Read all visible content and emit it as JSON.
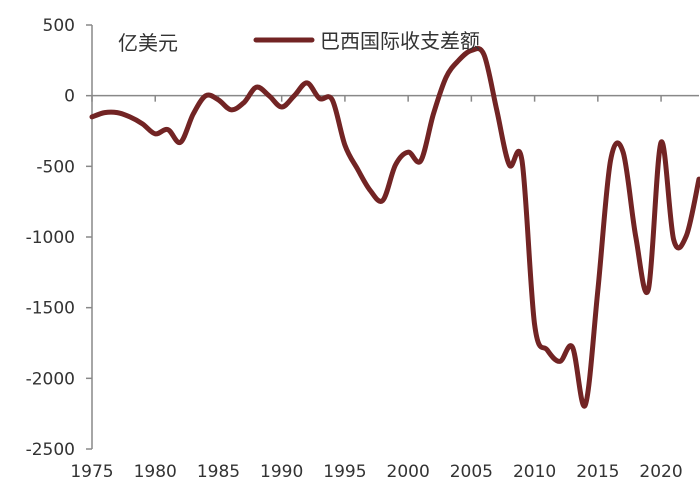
{
  "chart_data": {
    "type": "line",
    "title": "",
    "xlabel": "",
    "ylabel": "",
    "unit_label": "亿美元",
    "xlim": [
      1975,
      2023
    ],
    "ylim": [
      -2500,
      500
    ],
    "x_ticks": [
      1975,
      1980,
      1985,
      1990,
      1995,
      2000,
      2005,
      2010,
      2015,
      2020
    ],
    "y_ticks": [
      500,
      0,
      -500,
      -1000,
      -1500,
      -2000,
      -2500
    ],
    "x_tick_labels": [
      "1975",
      "1980",
      "1985",
      "1990",
      "1995",
      "2000",
      "2005",
      "2010",
      "2015",
      "2020"
    ],
    "y_tick_labels": [
      "500",
      "0",
      "-500",
      "-1000",
      "-1500",
      "-2000",
      "-2500"
    ],
    "grid": false,
    "legend_position": "top",
    "colors": {
      "series": "#722424",
      "axis": "#888888"
    },
    "series": [
      {
        "name": "巴西国际收支差额",
        "x": [
          1975,
          1976,
          1977,
          1978,
          1979,
          1980,
          1981,
          1982,
          1983,
          1984,
          1985,
          1986,
          1987,
          1988,
          1989,
          1990,
          1991,
          1992,
          1993,
          1994,
          1995,
          1996,
          1997,
          1998,
          1999,
          2000,
          2001,
          2002,
          2003,
          2004,
          2005,
          2006,
          2007,
          2008,
          2009,
          2010,
          2011,
          2012,
          2013,
          2014,
          2015,
          2016,
          2017,
          2018,
          2019,
          2020,
          2021,
          2022,
          2023
        ],
        "y": [
          -150,
          -120,
          -120,
          -150,
          -200,
          -270,
          -240,
          -330,
          -130,
          0,
          -30,
          -100,
          -50,
          60,
          0,
          -80,
          0,
          90,
          -20,
          -30,
          -350,
          -520,
          -670,
          -740,
          -490,
          -400,
          -460,
          -130,
          130,
          250,
          320,
          290,
          -100,
          -490,
          -460,
          -1620,
          -1800,
          -1880,
          -1780,
          -2190,
          -1380,
          -460,
          -400,
          -1000,
          -1370,
          -330,
          -1020,
          -990,
          -590
        ]
      }
    ]
  }
}
